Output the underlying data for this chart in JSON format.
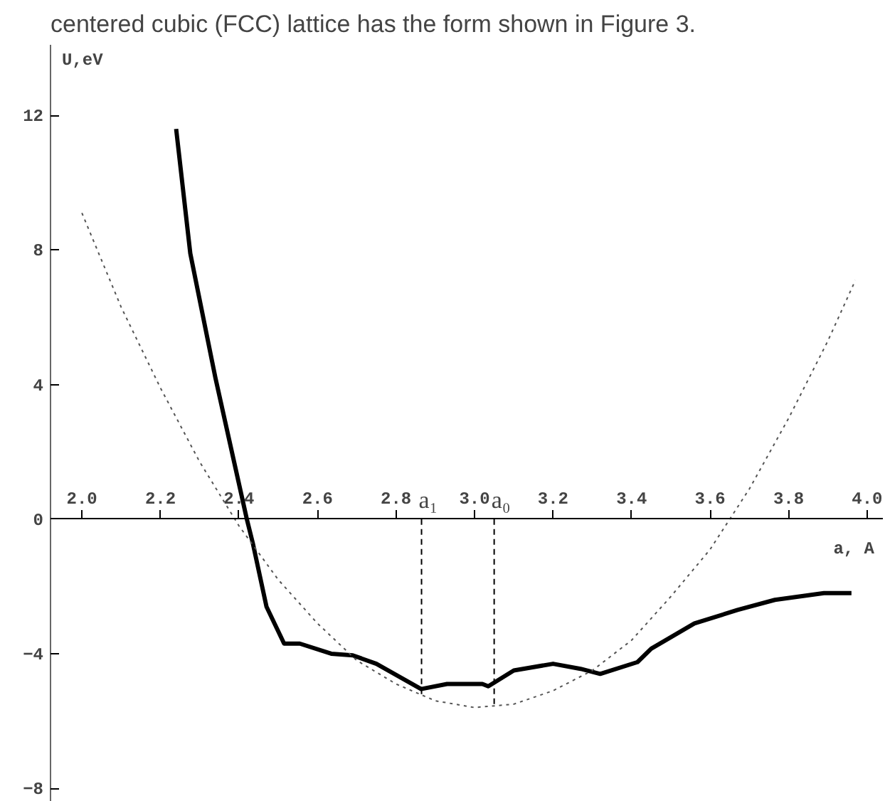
{
  "chart_data": {
    "type": "line",
    "xlabel": "a, A",
    "ylabel": "U,eV",
    "annotations": [
      "centered cubic (FCC) lattice has the form shown in Figure 3."
    ],
    "xlim": [
      1.92,
      4.04
    ],
    "ylim": [
      -8.4,
      14.1
    ],
    "xticks": [
      {
        "value": 2.0,
        "label": "2.0"
      },
      2.2,
      2.4,
      2.6,
      2.8,
      {
        "value": 3.0,
        "label": "3.0"
      },
      3.2,
      3.4,
      3.6,
      3.8,
      {
        "value": 4.0,
        "label": "4.0"
      }
    ],
    "yticks": [
      -8,
      -4,
      0,
      4,
      8,
      12
    ],
    "grid": false,
    "series": [
      {
        "color": "#000000",
        "line_style": "solid",
        "x": [
          2.24,
          2.276,
          2.34,
          2.42,
          2.435,
          2.47,
          2.515,
          2.555,
          2.635,
          2.69,
          2.75,
          2.864,
          2.93,
          3.02,
          3.035,
          3.1,
          3.2,
          3.27,
          3.32,
          3.415,
          3.45,
          3.56,
          3.67,
          3.765,
          3.89,
          3.96
        ],
        "values": [
          11.6,
          7.9,
          4.2,
          0.0,
          -0.7,
          -2.6,
          -3.7,
          -3.7,
          -4.0,
          -4.05,
          -4.3,
          -5.05,
          -4.9,
          -4.9,
          -4.97,
          -4.5,
          -4.3,
          -4.45,
          -4.6,
          -4.25,
          -3.85,
          -3.1,
          -2.7,
          -2.4,
          -2.2,
          -2.2
        ]
      },
      {
        "color": "#555555",
        "line_style": "dotted",
        "x": [
          2.0,
          2.1,
          2.2,
          2.3,
          2.4,
          2.5,
          2.6,
          2.7,
          2.8,
          2.9,
          3.0,
          3.1,
          3.2,
          3.3,
          3.4,
          3.5,
          3.6,
          3.7,
          3.8,
          3.9,
          3.97
        ],
        "values": [
          9.1,
          6.3,
          3.9,
          1.7,
          -0.2,
          -1.8,
          -3.1,
          -4.2,
          -4.9,
          -5.4,
          -5.6,
          -5.5,
          -5.1,
          -4.5,
          -3.6,
          -2.3,
          -0.9,
          0.9,
          3.0,
          5.3,
          7.1
        ]
      }
    ],
    "ref_lines": [
      {
        "axis": "x",
        "value": 2.865,
        "label": "a₁",
        "line_style": "dashed"
      },
      {
        "axis": "x",
        "value": 3.05,
        "label": "a₀",
        "line_style": "dashed"
      }
    ]
  }
}
